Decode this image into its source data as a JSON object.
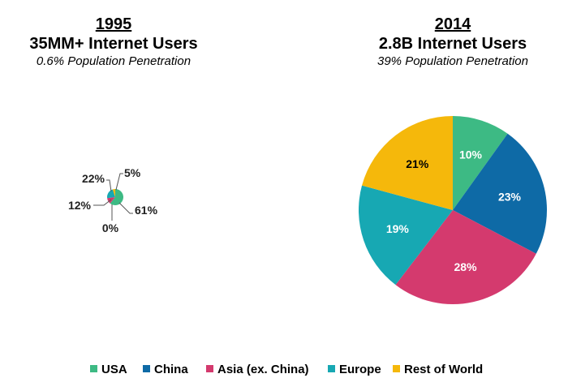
{
  "categories": [
    "USA",
    "China",
    "Asia (ex. China)",
    "Europe",
    "Rest of World"
  ],
  "colors": [
    "#3dba84",
    "#0e6aa6",
    "#d43a6e",
    "#17a8b3",
    "#f5b80b"
  ],
  "chart_data": [
    {
      "type": "pie",
      "title": "1995",
      "subtitle": "35MM+ Internet Users",
      "caption": "0.6% Population Penetration",
      "categories": [
        "USA",
        "China",
        "Asia (ex. China)",
        "Europe",
        "Rest of World"
      ],
      "values": [
        61,
        0,
        12,
        22,
        5
      ],
      "labels": [
        "61%",
        "0%",
        "12%",
        "22%",
        "5%"
      ],
      "legend": "bottom"
    },
    {
      "type": "pie",
      "title": "2014",
      "subtitle": "2.8B Internet Users",
      "caption": "39% Population Penetration",
      "categories": [
        "USA",
        "China",
        "Asia (ex. China)",
        "Europe",
        "Rest of World"
      ],
      "values": [
        10,
        23,
        28,
        19,
        21
      ],
      "labels": [
        "10%",
        "23%",
        "28%",
        "19%",
        "21%"
      ],
      "legend": "bottom"
    }
  ]
}
